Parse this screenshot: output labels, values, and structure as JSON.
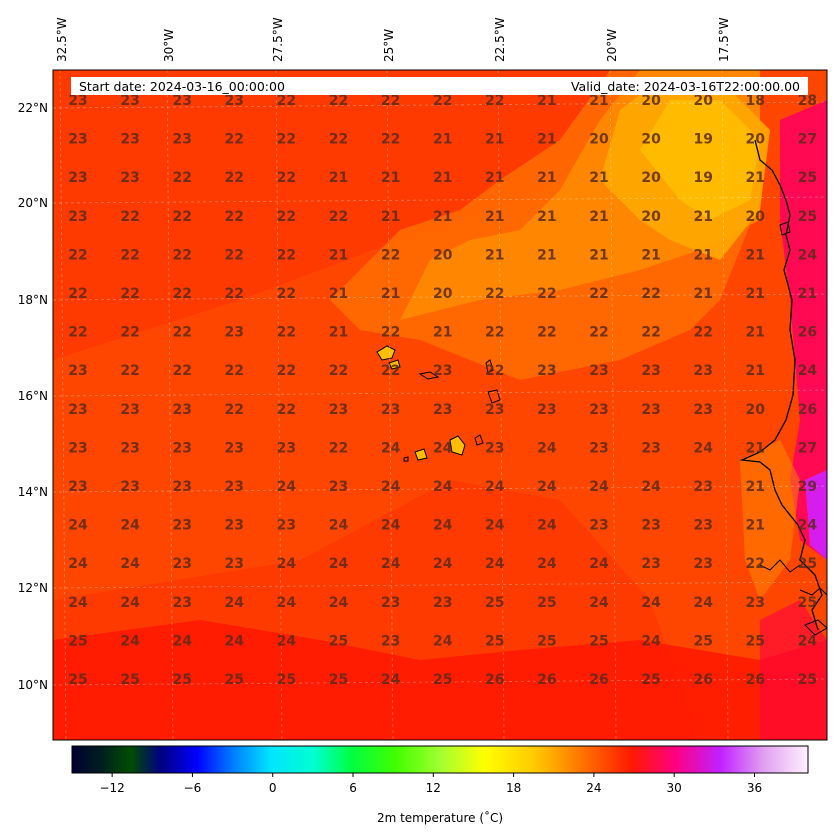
{
  "info": {
    "start": "Start date: 2024-03-16_00:00:00",
    "valid": "Valid_date: 2024-03-16T22:00:00.00"
  },
  "map": {
    "lon_labels": [
      "32.5°W",
      "30°W",
      "27.5°W",
      "25°W",
      "22.5°W",
      "20°W",
      "17.5°W"
    ],
    "lat_labels": [
      "22°N",
      "20°N",
      "18°N",
      "16°N",
      "14°N",
      "12°N",
      "10°N"
    ],
    "values": [
      [
        23,
        23,
        23,
        23,
        22,
        22,
        22,
        22,
        22,
        21,
        21,
        20,
        20,
        18,
        28
      ],
      [
        23,
        23,
        23,
        22,
        22,
        22,
        22,
        21,
        21,
        21,
        20,
        20,
        19,
        20,
        27
      ],
      [
        23,
        23,
        22,
        22,
        22,
        21,
        21,
        21,
        21,
        21,
        21,
        20,
        19,
        21,
        25
      ],
      [
        23,
        22,
        22,
        22,
        22,
        22,
        21,
        21,
        21,
        21,
        21,
        20,
        21,
        20,
        25
      ],
      [
        22,
        22,
        22,
        22,
        22,
        21,
        22,
        20,
        21,
        21,
        21,
        21,
        21,
        21,
        24
      ],
      [
        22,
        22,
        22,
        22,
        22,
        21,
        21,
        20,
        22,
        22,
        22,
        22,
        21,
        21,
        21
      ],
      [
        22,
        22,
        22,
        23,
        22,
        21,
        22,
        21,
        22,
        22,
        22,
        22,
        22,
        21,
        26
      ],
      [
        23,
        22,
        22,
        22,
        22,
        22,
        22,
        23,
        22,
        23,
        23,
        23,
        23,
        21,
        24
      ],
      [
        23,
        23,
        23,
        22,
        22,
        23,
        23,
        23,
        23,
        23,
        23,
        23,
        23,
        20,
        26
      ],
      [
        23,
        23,
        23,
        23,
        23,
        22,
        24,
        24,
        23,
        24,
        23,
        23,
        24,
        21,
        27
      ],
      [
        23,
        23,
        23,
        23,
        24,
        23,
        24,
        24,
        24,
        24,
        24,
        24,
        23,
        21,
        29
      ],
      [
        24,
        24,
        23,
        23,
        23,
        24,
        24,
        24,
        24,
        24,
        23,
        23,
        23,
        21,
        24
      ],
      [
        24,
        24,
        23,
        23,
        24,
        24,
        24,
        24,
        24,
        24,
        24,
        23,
        23,
        22,
        25
      ],
      [
        24,
        24,
        23,
        24,
        24,
        24,
        23,
        23,
        25,
        25,
        24,
        24,
        24,
        23,
        25
      ],
      [
        25,
        24,
        24,
        24,
        24,
        25,
        23,
        24,
        25,
        25,
        25,
        24,
        25,
        25,
        24
      ],
      [
        25,
        25,
        25,
        25,
        25,
        25,
        24,
        25,
        26,
        26,
        26,
        25,
        26,
        26,
        25
      ]
    ]
  },
  "colorbar": {
    "ticks": [
      "−12",
      "−6",
      "0",
      "6",
      "12",
      "18",
      "24",
      "30",
      "36"
    ],
    "label": "2m temperature ($^\\circ$C)",
    "label_display": "2m temperature (˚C)"
  }
}
